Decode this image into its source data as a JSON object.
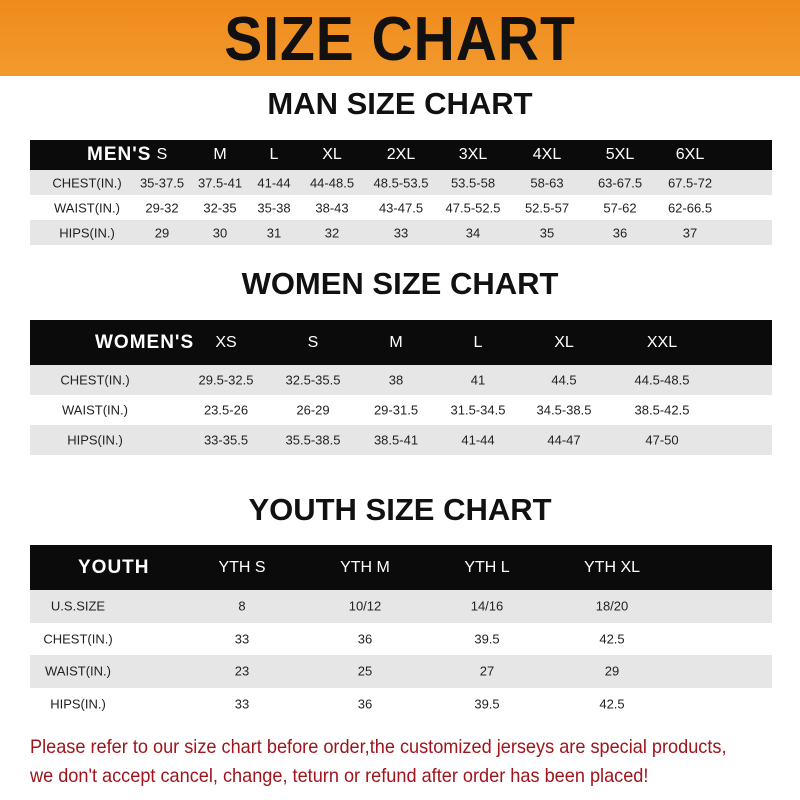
{
  "banner_title": "SIZE CHART",
  "accent_color": "#f08a1c",
  "note_color": "#a0141c",
  "men": {
    "title": "MAN SIZE CHART",
    "header": [
      "MEN'S",
      "S",
      "M",
      "L",
      "XL",
      "2XL",
      "3XL",
      "4XL",
      "5XL",
      "6XL"
    ],
    "rows": [
      [
        "CHEST(IN.)",
        "35-37.5",
        "37.5-41",
        "41-44",
        "44-48.5",
        "48.5-53.5",
        "53.5-58",
        "58-63",
        "63-67.5",
        "67.5-72"
      ],
      [
        "WAIST(IN.)",
        "29-32",
        "32-35",
        "35-38",
        "38-43",
        "43-47.5",
        "47.5-52.5",
        "52.5-57",
        "57-62",
        "62-66.5"
      ],
      [
        "HIPS(IN.)",
        "29",
        "30",
        "31",
        "32",
        "33",
        "34",
        "35",
        "36",
        "37"
      ]
    ]
  },
  "women": {
    "title": "WOMEN SIZE CHART",
    "header": [
      "WOMEN'S",
      "XS",
      "S",
      "M",
      "L",
      "XL",
      "XXL"
    ],
    "rows": [
      [
        "CHEST(IN.)",
        "29.5-32.5",
        "32.5-35.5",
        "38",
        "41",
        "44.5",
        "44.5-48.5"
      ],
      [
        "WAIST(IN.)",
        "23.5-26",
        "26-29",
        "29-31.5",
        "31.5-34.5",
        "34.5-38.5",
        "38.5-42.5"
      ],
      [
        "HIPS(IN.)",
        "33-35.5",
        "35.5-38.5",
        "38.5-41",
        "41-44",
        "44-47",
        "47-50"
      ]
    ]
  },
  "youth": {
    "title": "YOUTH SIZE CHART",
    "header": [
      "YOUTH",
      "YTH S",
      "YTH M",
      "YTH L",
      "YTH XL"
    ],
    "rows": [
      [
        "U.S.SIZE",
        "8",
        "10/12",
        "14/16",
        "18/20"
      ],
      [
        "CHEST(IN.)",
        "33",
        "36",
        "39.5",
        "42.5"
      ],
      [
        "WAIST(IN.)",
        "23",
        "25",
        "27",
        "29"
      ],
      [
        "HIPS(IN.)",
        "33",
        "36",
        "39.5",
        "42.5"
      ]
    ]
  },
  "note": {
    "line1": "Please refer to our size chart before order,the customized jerseys are special products,",
    "line2": "we don't accept cancel, change, teturn or refund after order has been placed!"
  }
}
